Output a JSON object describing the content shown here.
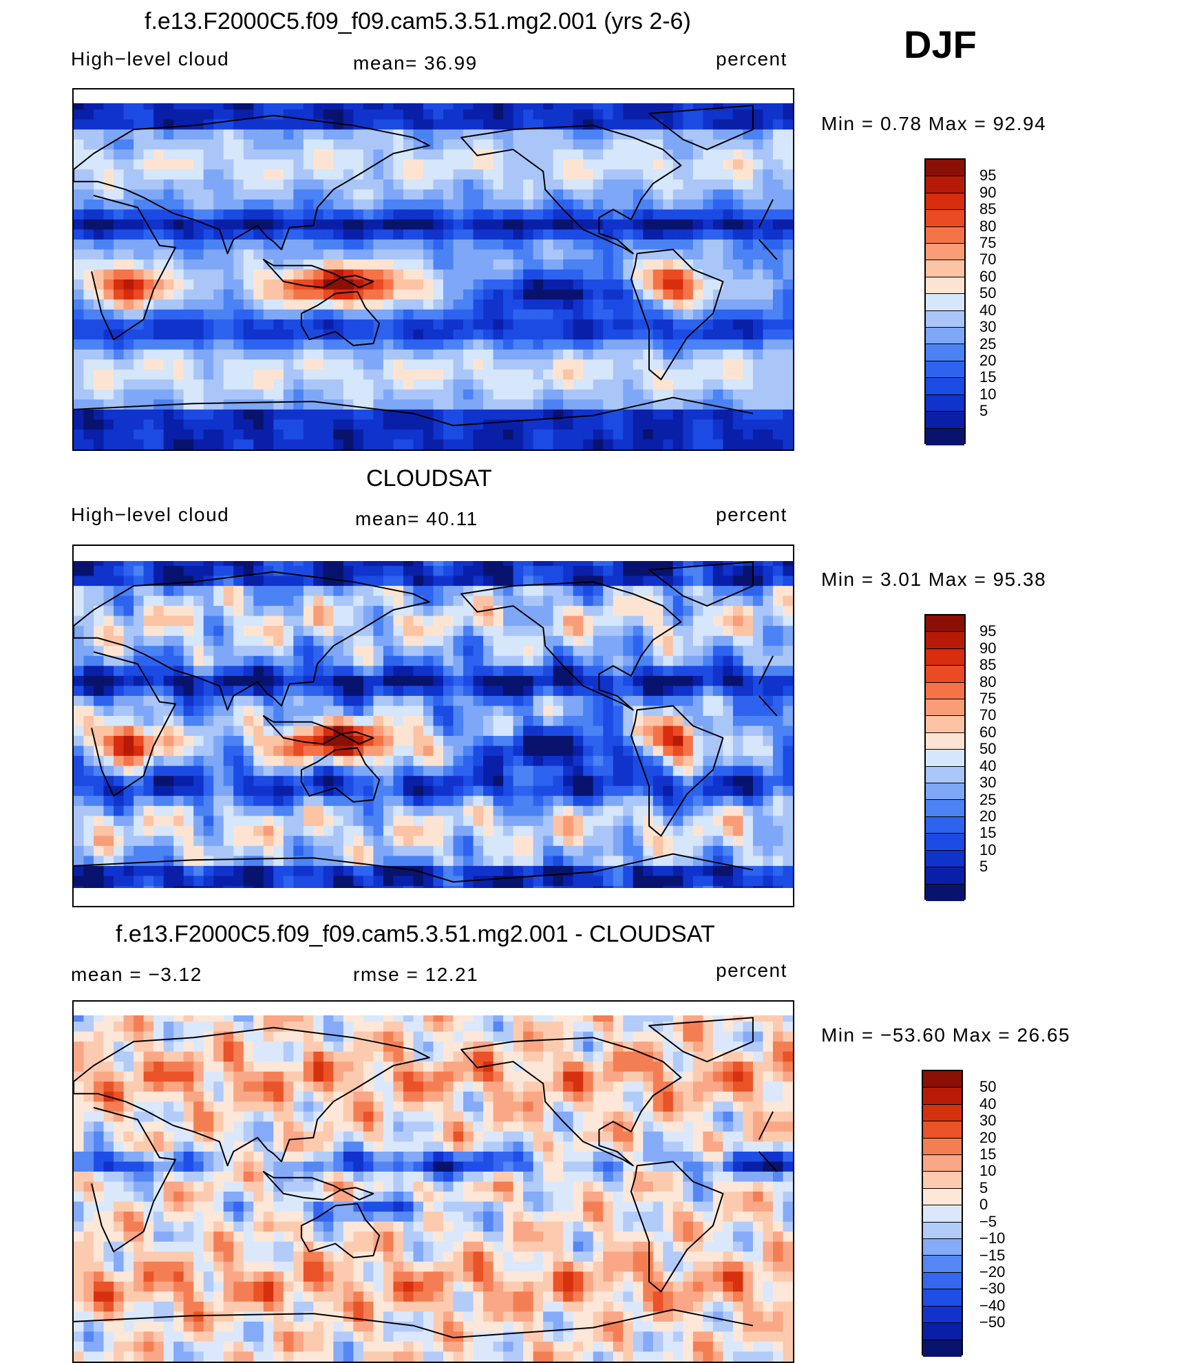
{
  "season": "DJF",
  "palette": {
    "blues": [
      "#08136e",
      "#0a1fa8",
      "#1033cc",
      "#1b4be3",
      "#2d63ef",
      "#4b82f4",
      "#7ea7f7",
      "#aac6f8",
      "#d6e6fb"
    ],
    "reds": [
      "#fde4d2",
      "#fcc3a4",
      "#f99d78",
      "#f47448",
      "#ea4b22",
      "#d82d0e",
      "#b71b08",
      "#8a0f05"
    ],
    "diff": [
      "#08136e",
      "#0a1fa8",
      "#1133cc",
      "#1e4ee6",
      "#3466f0",
      "#5486f4",
      "#85aaf7",
      "#b2cbf9",
      "#dbe8fc",
      "#fde7d8",
      "#fccbaf",
      "#f9a786",
      "#f47e53",
      "#ea5227",
      "#d6310f",
      "#b81c07",
      "#8a0f05"
    ]
  },
  "chart_data": [
    {
      "type": "heatmap",
      "title": "f.e13.F2000C5.f09_f09.cam5.3.51.mg2.001 (yrs 2-6)",
      "left_label": "High−level cloud",
      "center_label": "mean=   36.99",
      "units": "percent",
      "stats": "Min =     0.78  Max =    92.94",
      "min": 0.78,
      "max": 92.94,
      "mean": 36.99,
      "colorbar_levels": [
        "95",
        "90",
        "85",
        "80",
        "75",
        "70",
        "60",
        "50",
        "40",
        "30",
        "25",
        "20",
        "15",
        "10",
        "5"
      ]
    },
    {
      "type": "heatmap",
      "title": "CLOUDSAT",
      "left_label": "High−level cloud",
      "center_label": "mean=   40.11",
      "units": "percent",
      "stats": "Min =     3.01  Max =    95.38",
      "min": 3.01,
      "max": 95.38,
      "mean": 40.11,
      "colorbar_levels": [
        "95",
        "90",
        "85",
        "80",
        "75",
        "70",
        "60",
        "50",
        "40",
        "30",
        "25",
        "20",
        "15",
        "10",
        "5"
      ]
    },
    {
      "type": "heatmap",
      "title": "f.e13.F2000C5.f09_f09.cam5.3.51.mg2.001 - CLOUDSAT",
      "left_label": "mean =   −3.12",
      "center_label": "rmse =    12.21",
      "units": "percent",
      "stats": "Min = −53.60  Max =    26.65",
      "min": -53.6,
      "max": 26.65,
      "mean": -3.12,
      "rmse": 12.21,
      "colorbar_levels": [
        "50",
        "40",
        "30",
        "20",
        "15",
        "10",
        "5",
        "0",
        "−5",
        "−10",
        "−15",
        "−20",
        "−30",
        "−40",
        "−50"
      ]
    }
  ]
}
